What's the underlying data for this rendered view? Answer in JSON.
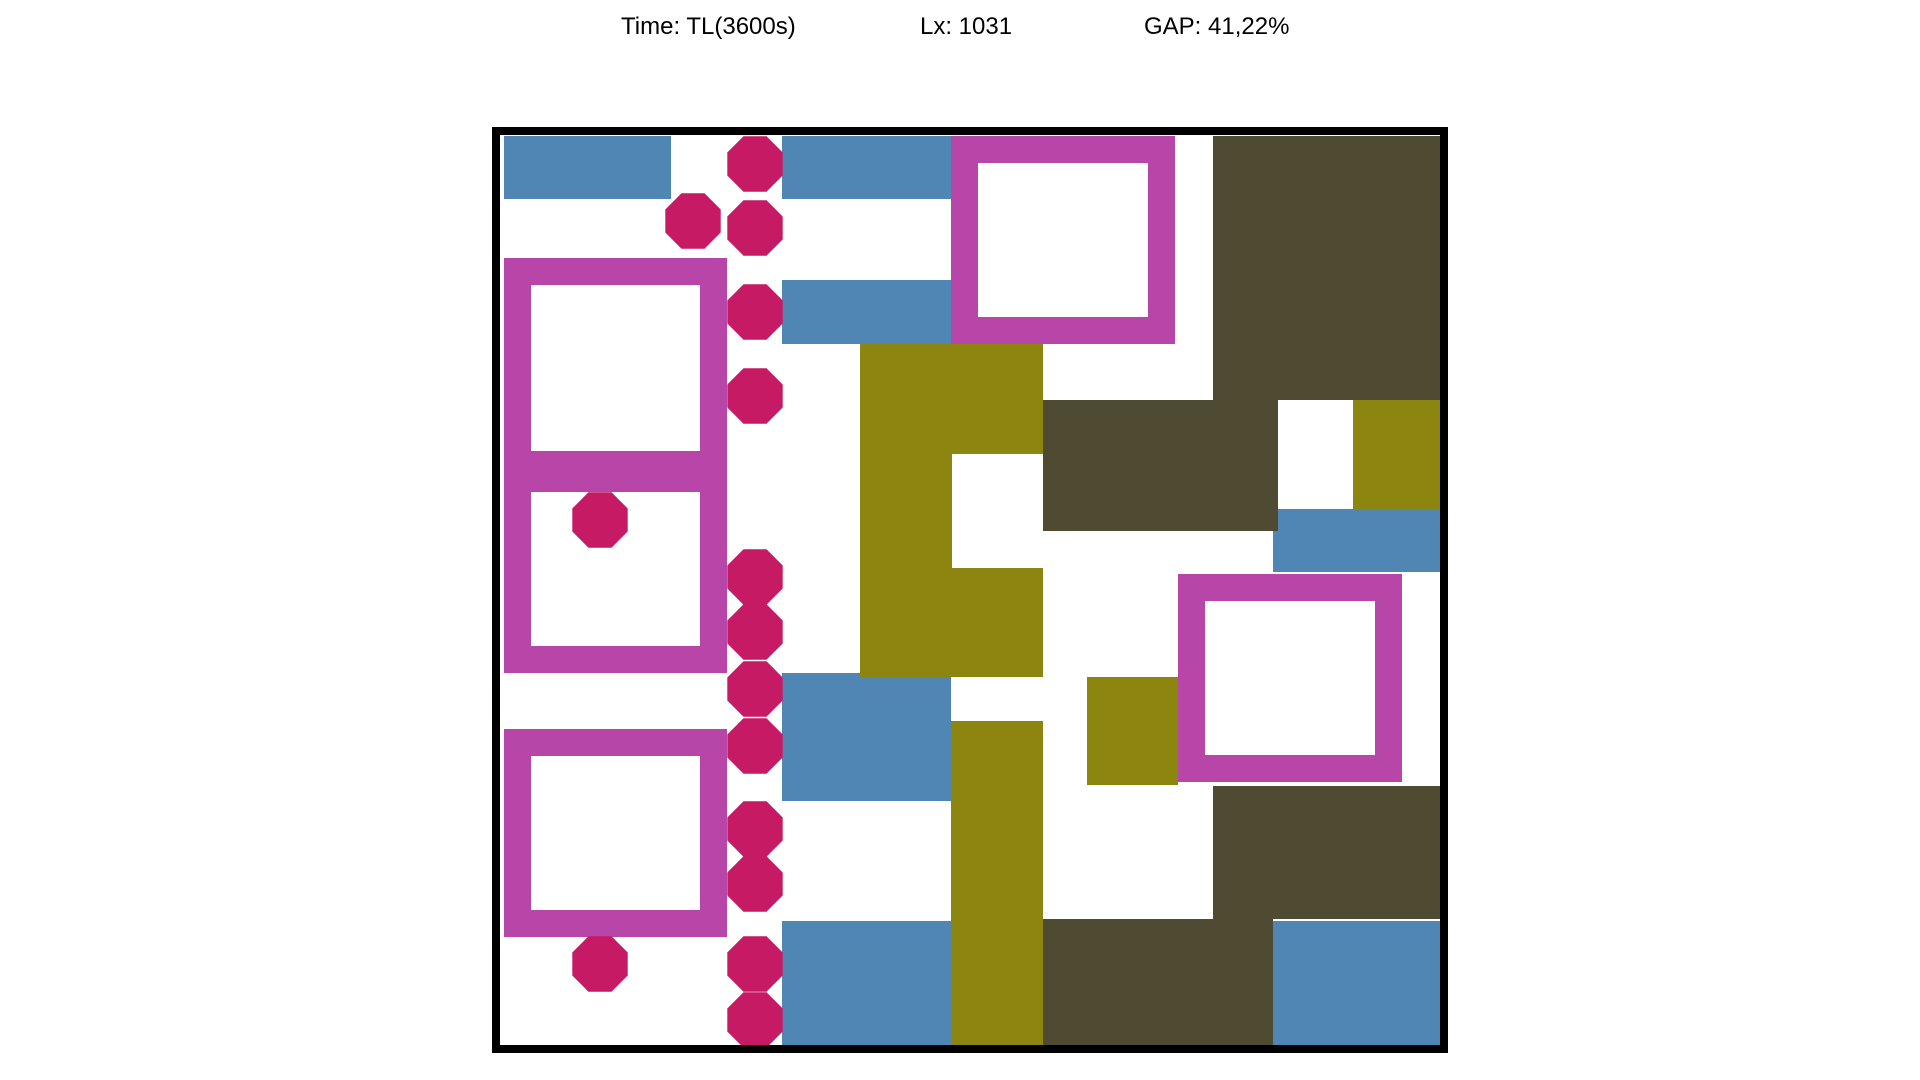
{
  "header": {
    "time": "Time: TL(3600s)",
    "lx": "Lx: 1031",
    "gap": "GAP: 41,22%"
  },
  "palette": {
    "blue": "#4f86b3",
    "olive": "#8c8510",
    "dark": "#4f4a32",
    "frame": "#b845a8",
    "octagon": "#c71a64",
    "border": "#000000",
    "background": "#ffffff"
  }
}
